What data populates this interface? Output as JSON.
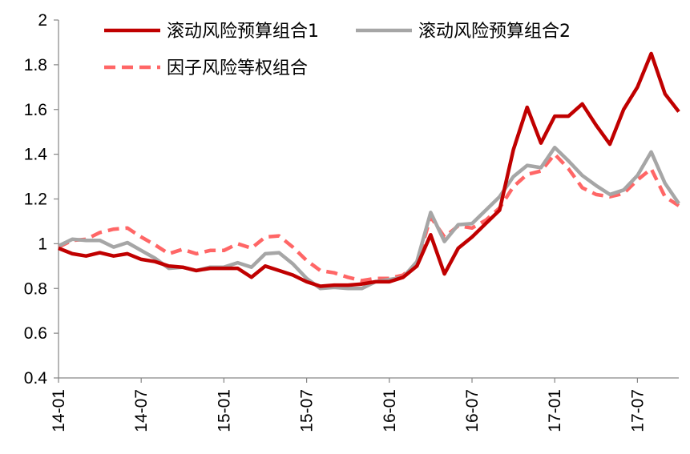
{
  "chart_data": {
    "type": "line",
    "ylim": [
      0.4,
      2.0
    ],
    "y_ticks": [
      "0.4",
      "0.6",
      "0.8",
      "1",
      "1.2",
      "1.4",
      "1.6",
      "1.8",
      "2"
    ],
    "x_ticks": [
      "14-01",
      "14-07",
      "15-01",
      "15-07",
      "16-01",
      "16-07",
      "17-01",
      "17-07"
    ],
    "x": [
      "14-01",
      "14-02",
      "14-03",
      "14-04",
      "14-05",
      "14-06",
      "14-07",
      "14-08",
      "14-09",
      "14-10",
      "14-11",
      "14-12",
      "15-01",
      "15-02",
      "15-03",
      "15-04",
      "15-05",
      "15-06",
      "15-07",
      "15-08",
      "15-09",
      "15-10",
      "15-11",
      "15-12",
      "16-01",
      "16-02",
      "16-03",
      "16-04",
      "16-05",
      "16-06",
      "16-07",
      "16-08",
      "16-09",
      "16-10",
      "16-11",
      "16-12",
      "17-01",
      "17-02",
      "17-03",
      "17-04",
      "17-05",
      "17-06",
      "17-07",
      "17-08",
      "17-09",
      "17-10"
    ],
    "legend_position": "top",
    "grid": false,
    "series": [
      {
        "name": "滚动风险预算组合1",
        "color": "#C00000",
        "style": "solid",
        "values": [
          0.98,
          0.955,
          0.945,
          0.96,
          0.945,
          0.955,
          0.93,
          0.92,
          0.9,
          0.895,
          0.88,
          0.89,
          0.89,
          0.89,
          0.85,
          0.9,
          0.88,
          0.86,
          0.83,
          0.81,
          0.815,
          0.815,
          0.82,
          0.83,
          0.83,
          0.85,
          0.9,
          1.04,
          0.865,
          0.98,
          1.03,
          1.09,
          1.15,
          1.42,
          1.61,
          1.45,
          1.57,
          1.57,
          1.625,
          1.53,
          1.445,
          1.6,
          1.7,
          1.85,
          1.67,
          1.59
        ]
      },
      {
        "name": "滚动风险预算组合2",
        "color": "#A6A6A6",
        "style": "solid",
        "values": [
          0.99,
          1.02,
          1.015,
          1.015,
          0.985,
          1.005,
          0.97,
          0.935,
          0.89,
          0.895,
          0.88,
          0.895,
          0.895,
          0.915,
          0.895,
          0.955,
          0.96,
          0.91,
          0.845,
          0.8,
          0.805,
          0.8,
          0.8,
          0.83,
          0.84,
          0.85,
          0.92,
          1.14,
          1.01,
          1.085,
          1.09,
          1.15,
          1.21,
          1.3,
          1.35,
          1.34,
          1.43,
          1.37,
          1.305,
          1.26,
          1.22,
          1.24,
          1.305,
          1.41,
          1.27,
          1.18
        ]
      },
      {
        "name": "因子风险等权组合",
        "color": "#FF6666",
        "style": "dashed",
        "values": [
          0.985,
          1.015,
          1.02,
          1.05,
          1.065,
          1.07,
          1.03,
          0.995,
          0.955,
          0.975,
          0.955,
          0.97,
          0.97,
          1.0,
          0.98,
          1.03,
          1.035,
          0.985,
          0.925,
          0.88,
          0.87,
          0.85,
          0.835,
          0.845,
          0.845,
          0.86,
          0.91,
          1.12,
          1.03,
          1.08,
          1.07,
          1.105,
          1.16,
          1.255,
          1.31,
          1.325,
          1.4,
          1.335,
          1.25,
          1.22,
          1.21,
          1.225,
          1.285,
          1.335,
          1.21,
          1.17
        ]
      }
    ]
  }
}
